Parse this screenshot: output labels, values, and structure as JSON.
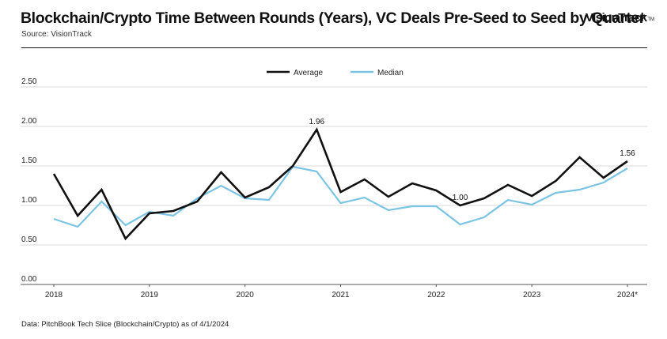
{
  "header": {
    "title": "Blockchain/Crypto Time Between Rounds (Years), VC Deals Pre-Seed to Seed by Quarter",
    "source": "Source: VisionTrack",
    "brand": "VisionTrack",
    "brand_tm": "TM"
  },
  "footnote": "Data: PitchBook Tech Slice (Blockchain/Crypto) as of 4/1/2024",
  "colors": {
    "average": "#111111",
    "median": "#7cc4e4",
    "grid": "#d9d9d9",
    "axis": "#555555"
  },
  "chart_data": {
    "type": "line",
    "title": "Blockchain/Crypto Time Between Rounds (Years), VC Deals Pre-Seed to Seed by Quarter",
    "xlabel": "",
    "ylabel": "",
    "ylim": [
      0,
      2.5
    ],
    "yticks": [
      "0.00",
      "0.50",
      "1.00",
      "1.50",
      "2.00",
      "2.50"
    ],
    "year_labels": [
      "2018",
      "2019",
      "2020",
      "2021",
      "2022",
      "2023",
      "2024*"
    ],
    "categories": [
      "2018 Q1",
      "2018 Q2",
      "2018 Q3",
      "2018 Q4",
      "2019 Q1",
      "2019 Q2",
      "2019 Q3",
      "2019 Q4",
      "2020 Q1",
      "2020 Q2",
      "2020 Q3",
      "2020 Q4",
      "2021 Q1",
      "2021 Q2",
      "2021 Q3",
      "2021 Q4",
      "2022 Q1",
      "2022 Q2",
      "2022 Q3",
      "2022 Q4",
      "2023 Q1",
      "2023 Q2",
      "2023 Q3",
      "2023 Q4",
      "2024 Q1"
    ],
    "legend": "top-center",
    "grid": true,
    "series": [
      {
        "name": "Average",
        "values": [
          1.4,
          0.87,
          1.2,
          0.58,
          0.9,
          0.93,
          1.05,
          1.42,
          1.1,
          1.23,
          1.5,
          1.96,
          1.17,
          1.33,
          1.11,
          1.28,
          1.19,
          1.0,
          1.09,
          1.26,
          1.12,
          1.31,
          1.61,
          1.35,
          1.56
        ]
      },
      {
        "name": "Median",
        "values": [
          0.83,
          0.73,
          1.05,
          0.75,
          0.92,
          0.87,
          1.09,
          1.25,
          1.09,
          1.07,
          1.49,
          1.43,
          1.03,
          1.1,
          0.94,
          0.99,
          0.99,
          0.76,
          0.85,
          1.07,
          1.01,
          1.16,
          1.2,
          1.29,
          1.47
        ]
      }
    ],
    "data_labels": [
      {
        "series": 0,
        "index": 11,
        "text": "1.96"
      },
      {
        "series": 0,
        "index": 17,
        "text": "1.00"
      },
      {
        "series": 0,
        "index": 24,
        "text": "1.56"
      }
    ]
  }
}
